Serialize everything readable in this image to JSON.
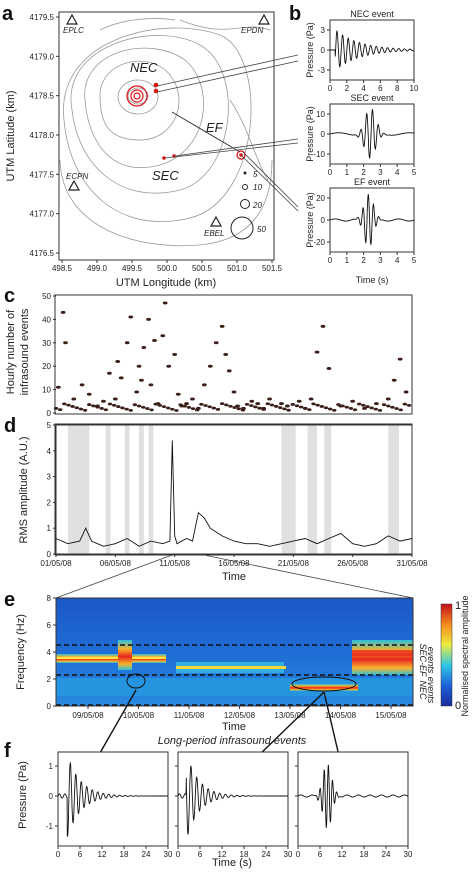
{
  "panels": {
    "a": {
      "letter": "a",
      "xlabel": "UTM Longitude (km)",
      "ylabel": "UTM Latitude (km)",
      "xticks": [
        "498.5",
        "499.0",
        "499.5",
        "500.0",
        "500.5",
        "501.0",
        "501.5"
      ],
      "yticks": [
        "4179.5",
        "4179.0",
        "4178.5",
        "4178.0",
        "4177.5",
        "4177.0",
        "4176.5"
      ],
      "stations": [
        {
          "name": "EPLC",
          "x": 498.75,
          "y": 4179.62
        },
        {
          "name": "EPDN",
          "x": 501.35,
          "y": 4179.62
        },
        {
          "name": "ECPN",
          "x": 498.75,
          "y": 4177.58
        },
        {
          "name": "EBEL",
          "x": 500.85,
          "y": 4176.95
        }
      ],
      "vents": {
        "nec": "NEC",
        "sec": "SEC",
        "ef": "EF"
      },
      "legend_sizes": [
        "5",
        "10",
        "20",
        "50"
      ]
    },
    "b": {
      "letter": "b",
      "ylabel": "Pressure (Pa)",
      "xlabel": "Time (s)",
      "events": [
        {
          "title": "NEC event",
          "yticks": [
            "3",
            "0",
            "-3"
          ],
          "xticks": [
            "0",
            "2",
            "4",
            "6",
            "8",
            "10"
          ]
        },
        {
          "title": "SEC event",
          "yticks": [
            "10",
            "0",
            "-10"
          ],
          "xticks": [
            "0",
            "1",
            "2",
            "3",
            "4",
            "5"
          ]
        },
        {
          "title": "EF event",
          "yticks": [
            "20",
            "0",
            "-20"
          ],
          "xticks": [
            "0",
            "1",
            "2",
            "3",
            "4",
            "5"
          ]
        }
      ]
    },
    "c": {
      "letter": "c",
      "ylabel1": "Hourly number of",
      "ylabel2": "infrasound events",
      "yticks": [
        "0",
        "10",
        "20",
        "30",
        "40",
        "50"
      ]
    },
    "d": {
      "letter": "d",
      "ylabel": "RMS amplitude (A.U.)",
      "xlabel": "Time",
      "yticks": [
        "0",
        "1",
        "2",
        "3",
        "4",
        "5"
      ],
      "xticks": [
        "01/05/08",
        "06/05/08",
        "11/05/08",
        "16/05/08",
        "21/05/08",
        "26/05/08",
        "31/05/08"
      ]
    },
    "e": {
      "letter": "e",
      "ylabel": "Frequency (Hz)",
      "xlabel": "Time",
      "yticks": [
        "0",
        "2",
        "4",
        "6",
        "8"
      ],
      "xticks": [
        "09/05/08",
        "10/05/08",
        "11/05/08",
        "12/05/08",
        "13/05/08",
        "14/05/08",
        "15/05/08"
      ],
      "band1": "SEC-EF",
      "band1b": "events",
      "band2": "NEC",
      "band2b": "events",
      "colorbar_label": "Normalised spectral amplitude",
      "colorbar_max": "1",
      "colorbar_min": "0"
    },
    "f": {
      "letter": "f",
      "title": "Long-period infrasound events",
      "ylabel": "Pressure (Pa)",
      "xlabel": "Time (s)",
      "yticks": [
        "1",
        "0",
        "-1"
      ],
      "xticks": [
        "0",
        "6",
        "12",
        "18",
        "24",
        "30"
      ]
    }
  },
  "chart_data": [
    {
      "type": "scatter",
      "panel": "c",
      "ylabel": "Hourly number of infrasound events",
      "ylim": [
        0,
        50
      ],
      "x_days": [
        1.2,
        1.6,
        1.8,
        2.5,
        3.2,
        3.8,
        4.5,
        5.0,
        5.5,
        6.0,
        6.2,
        6.5,
        7.0,
        7.3,
        7.8,
        8.0,
        8.2,
        8.4,
        8.8,
        9.0,
        9.3,
        9.6,
        10.0,
        10.2,
        10.5,
        11.0,
        11.3,
        11.6,
        12.0,
        12.5,
        13.0,
        13.5,
        14.0,
        14.5,
        15.0,
        15.3,
        15.6,
        16.0,
        16.3,
        16.8,
        17.5,
        18.0,
        18.5,
        19.0,
        20.0,
        20.5,
        21.5,
        22.0,
        22.5,
        23.0,
        23.5,
        24.0,
        25.0,
        26.0,
        27.0,
        28.0,
        29.0,
        29.5,
        30.0,
        30.5
      ],
      "y_counts": [
        11,
        43,
        30,
        6,
        12,
        8,
        3,
        5,
        17,
        6,
        22,
        15,
        30,
        41,
        9,
        20,
        14,
        28,
        40,
        12,
        31,
        4,
        33,
        47,
        20,
        25,
        8,
        3,
        4,
        6,
        2,
        12,
        20,
        30,
        37,
        25,
        18,
        9,
        3,
        2,
        5,
        4,
        2,
        6,
        4,
        3,
        5,
        2,
        6,
        26,
        37,
        19,
        3,
        5,
        2,
        4,
        6,
        14,
        23,
        9
      ]
    },
    {
      "type": "line",
      "panel": "d",
      "ylabel": "RMS amplitude (A.U.)",
      "ylim": [
        0,
        5
      ],
      "x_dates": [
        "01/05/08",
        "06/05/08",
        "11/05/08",
        "16/05/08",
        "21/05/08",
        "26/05/08",
        "31/05/08"
      ],
      "x_days": [
        1.0,
        2.0,
        3.0,
        3.5,
        4.0,
        5.0,
        6.0,
        7.0,
        8.0,
        9.0,
        10.0,
        10.6,
        10.8,
        11.0,
        11.2,
        12.0,
        12.5,
        13.0,
        13.5,
        14.0,
        15.0,
        16.0,
        17.0,
        18.0,
        19.0,
        20.0,
        21.0,
        22.0,
        23.0,
        24.0,
        25.0,
        26.0,
        27.0,
        28.0,
        29.0,
        30.0,
        31.0
      ],
      "values": [
        0.6,
        0.4,
        0.5,
        1.0,
        0.5,
        0.3,
        0.4,
        0.6,
        0.3,
        0.5,
        0.4,
        0.5,
        4.4,
        0.7,
        0.4,
        0.6,
        0.5,
        1.6,
        1.4,
        1.0,
        0.7,
        0.5,
        0.4,
        0.4,
        0.3,
        0.4,
        0.5,
        0.6,
        0.4,
        0.6,
        0.8,
        0.4,
        0.3,
        0.4,
        0.7,
        0.5,
        0.6
      ]
    }
  ]
}
